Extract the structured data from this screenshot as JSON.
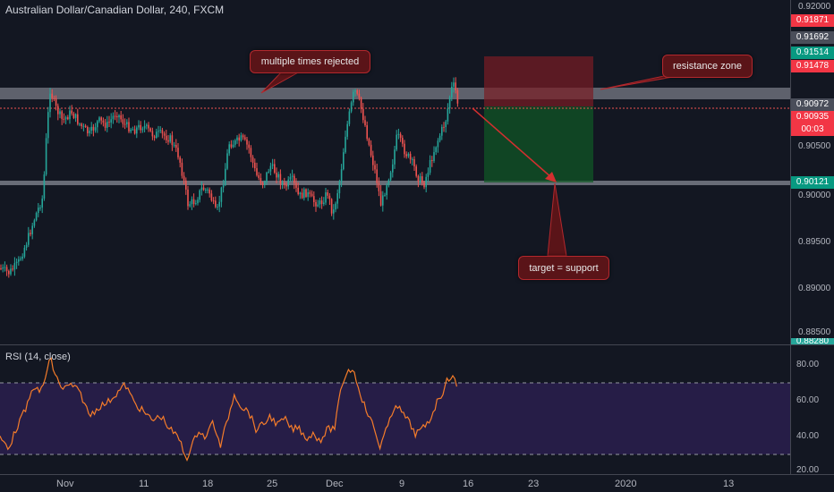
{
  "title": "Australian Dollar/Canadian Dollar, 240, FXCM",
  "rsi_title": "RSI (14, close)",
  "annotations": {
    "rejected": "multiple times rejected",
    "resistance": "resistance zone",
    "target": "target = support"
  },
  "price_axis": {
    "ticks": [
      "0.92000",
      "0.90500",
      "0.90000",
      "0.89500",
      "0.89000",
      "0.88500"
    ],
    "labels": [
      {
        "text": "0.91871",
        "bg": "#f23645"
      },
      {
        "text": "0.91692",
        "bg": "#4a4e5a"
      },
      {
        "text": "0.91514",
        "bg": "#089981"
      },
      {
        "text": "0.91478",
        "bg": "#f23645"
      },
      {
        "text": "0.90972",
        "bg": "#4a4e5a"
      },
      {
        "text": "0.90935",
        "bg": "#f23645"
      },
      {
        "text": "00:03",
        "bg": "#f23645"
      },
      {
        "text": "0.90121",
        "bg": "#089981"
      },
      {
        "text": "0.88280",
        "bg": "#26a69a"
      }
    ]
  },
  "rsi_axis": {
    "ticks": [
      "80.00",
      "60.00",
      "40.00",
      "20.00"
    ]
  },
  "time_axis": {
    "ticks": [
      "Nov",
      "11",
      "18",
      "25",
      "Dec",
      "9",
      "16",
      "23",
      "2020",
      "13"
    ]
  },
  "colors": {
    "up": "#26a69a",
    "down": "#ef5350",
    "zone": "#787b86",
    "rsi_line": "#f57c2a",
    "rsi_band": "#2a1f4d",
    "accent": "#d32f2f"
  }
}
